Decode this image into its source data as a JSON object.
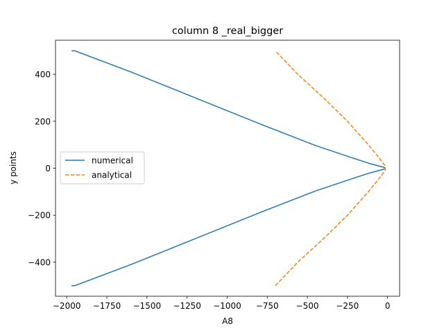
{
  "chart_data": {
    "type": "line",
    "title": "column 8 _real_bigger",
    "xlabel": "A8",
    "ylabel": "y points",
    "xlim": [
      -2070,
      75
    ],
    "ylim": [
      -545,
      545
    ],
    "xticks": [
      -2000,
      -1750,
      -1500,
      -1250,
      -1000,
      -750,
      -500,
      -250,
      0
    ],
    "xtick_labels": [
      "−2000",
      "−1750",
      "−1500",
      "−1250",
      "−1000",
      "−750",
      "−500",
      "−250",
      "0"
    ],
    "yticks": [
      -400,
      -200,
      0,
      200,
      400
    ],
    "ytick_labels": [
      "−400",
      "−200",
      "0",
      "200",
      "400"
    ],
    "grid": false,
    "legend_position": "center-left",
    "series": [
      {
        "name": "numerical",
        "color": "#1f77b4",
        "dash": "solid",
        "x": [
          -1970,
          -1950,
          -1600,
          -1200,
          -800,
          -450,
          -250,
          -120,
          -40,
          -18,
          -15,
          -18,
          -40,
          -120,
          -250,
          -450,
          -800,
          -1200,
          -1600,
          -1950,
          -1970
        ],
        "y": [
          -500,
          -500,
          -410,
          -300,
          -190,
          -97,
          -51,
          -22,
          -7,
          -3,
          0,
          3,
          7,
          22,
          51,
          97,
          190,
          300,
          410,
          500,
          500
        ]
      },
      {
        "name": "analytical",
        "color": "#ff7f0e",
        "dash": "dashed",
        "x": [
          -700,
          -560,
          -400,
          -250,
          -120,
          -60,
          -15,
          -15,
          -60,
          -120,
          -250,
          -400,
          -560,
          -700
        ],
        "y": [
          -500,
          -400,
          -300,
          -200,
          -100,
          -50,
          -10,
          10,
          50,
          100,
          200,
          300,
          400,
          500
        ]
      }
    ]
  }
}
